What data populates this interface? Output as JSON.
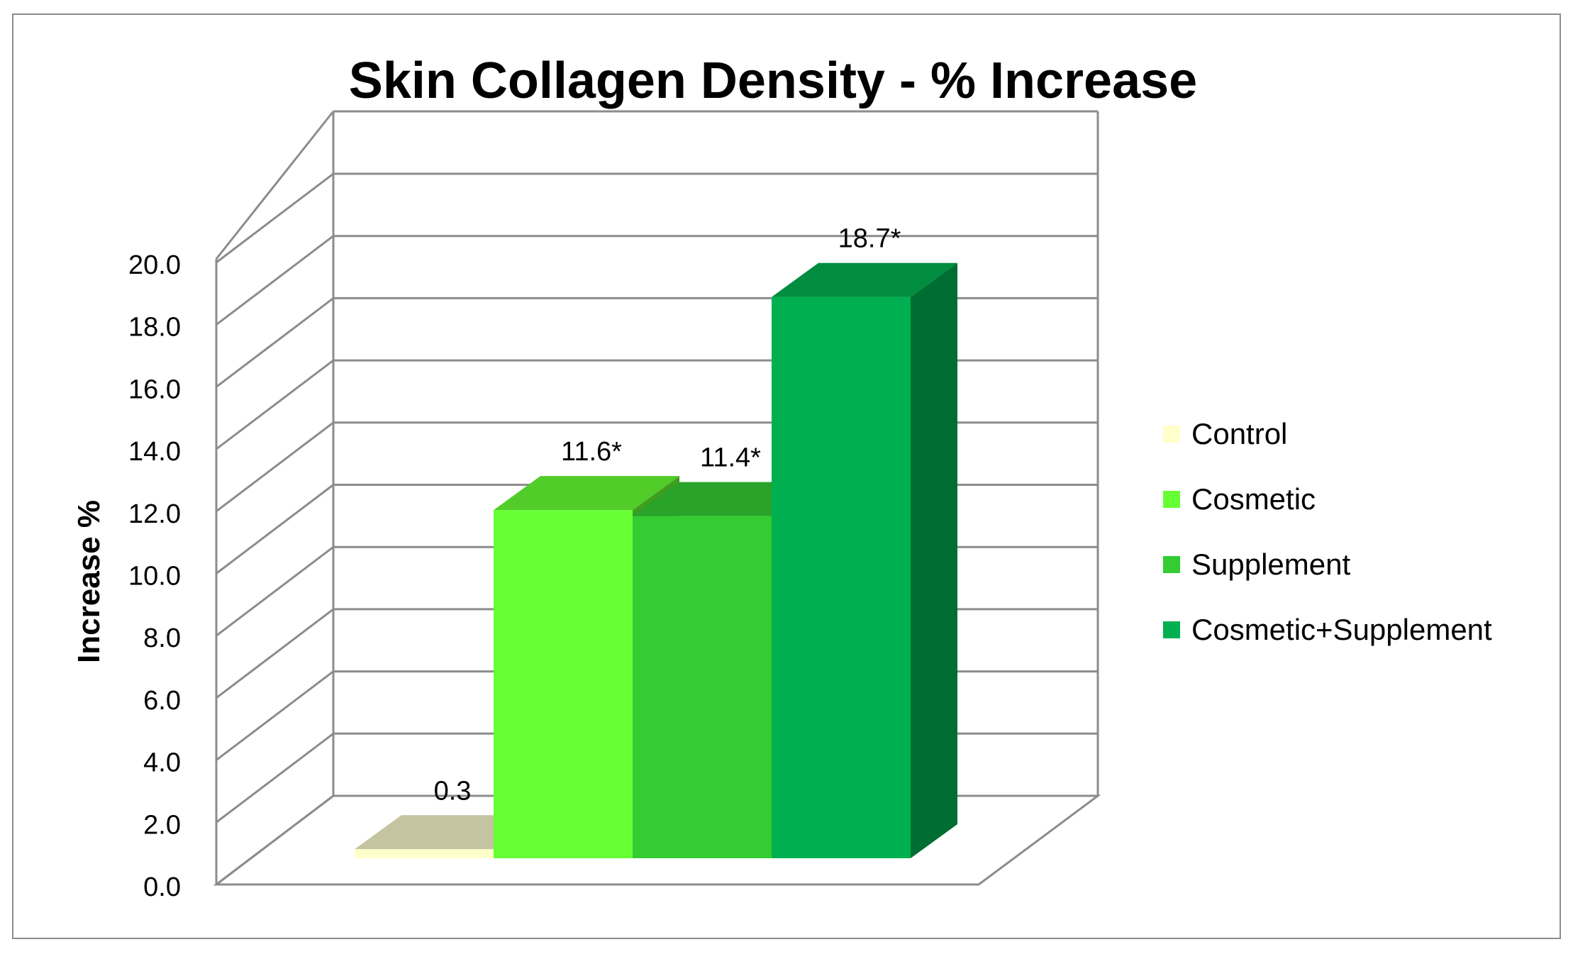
{
  "chart_data": {
    "type": "bar",
    "title": "Skin Collagen Density - % Increase",
    "xlabel": "",
    "ylabel": "Increase %",
    "ylim": [
      0,
      20
    ],
    "yticks": [
      "0.0",
      "2.0",
      "4.0",
      "6.0",
      "8.0",
      "10.0",
      "12.0",
      "14.0",
      "16.0",
      "18.0",
      "20.0"
    ],
    "grid": true,
    "three_d": true,
    "legend_position": "right",
    "series": [
      {
        "name": "Control",
        "value": 0.3,
        "label": "0.3",
        "color": "#FFFFCC"
      },
      {
        "name": "Cosmetic",
        "value": 11.6,
        "label": "11.6*",
        "color": "#66FF33"
      },
      {
        "name": "Supplement",
        "value": 11.4,
        "label": "11.4*",
        "color": "#33CC33"
      },
      {
        "name": "Cosmetic+Supplement",
        "value": 18.7,
        "label": "18.7*",
        "color": "#00B050"
      }
    ]
  }
}
